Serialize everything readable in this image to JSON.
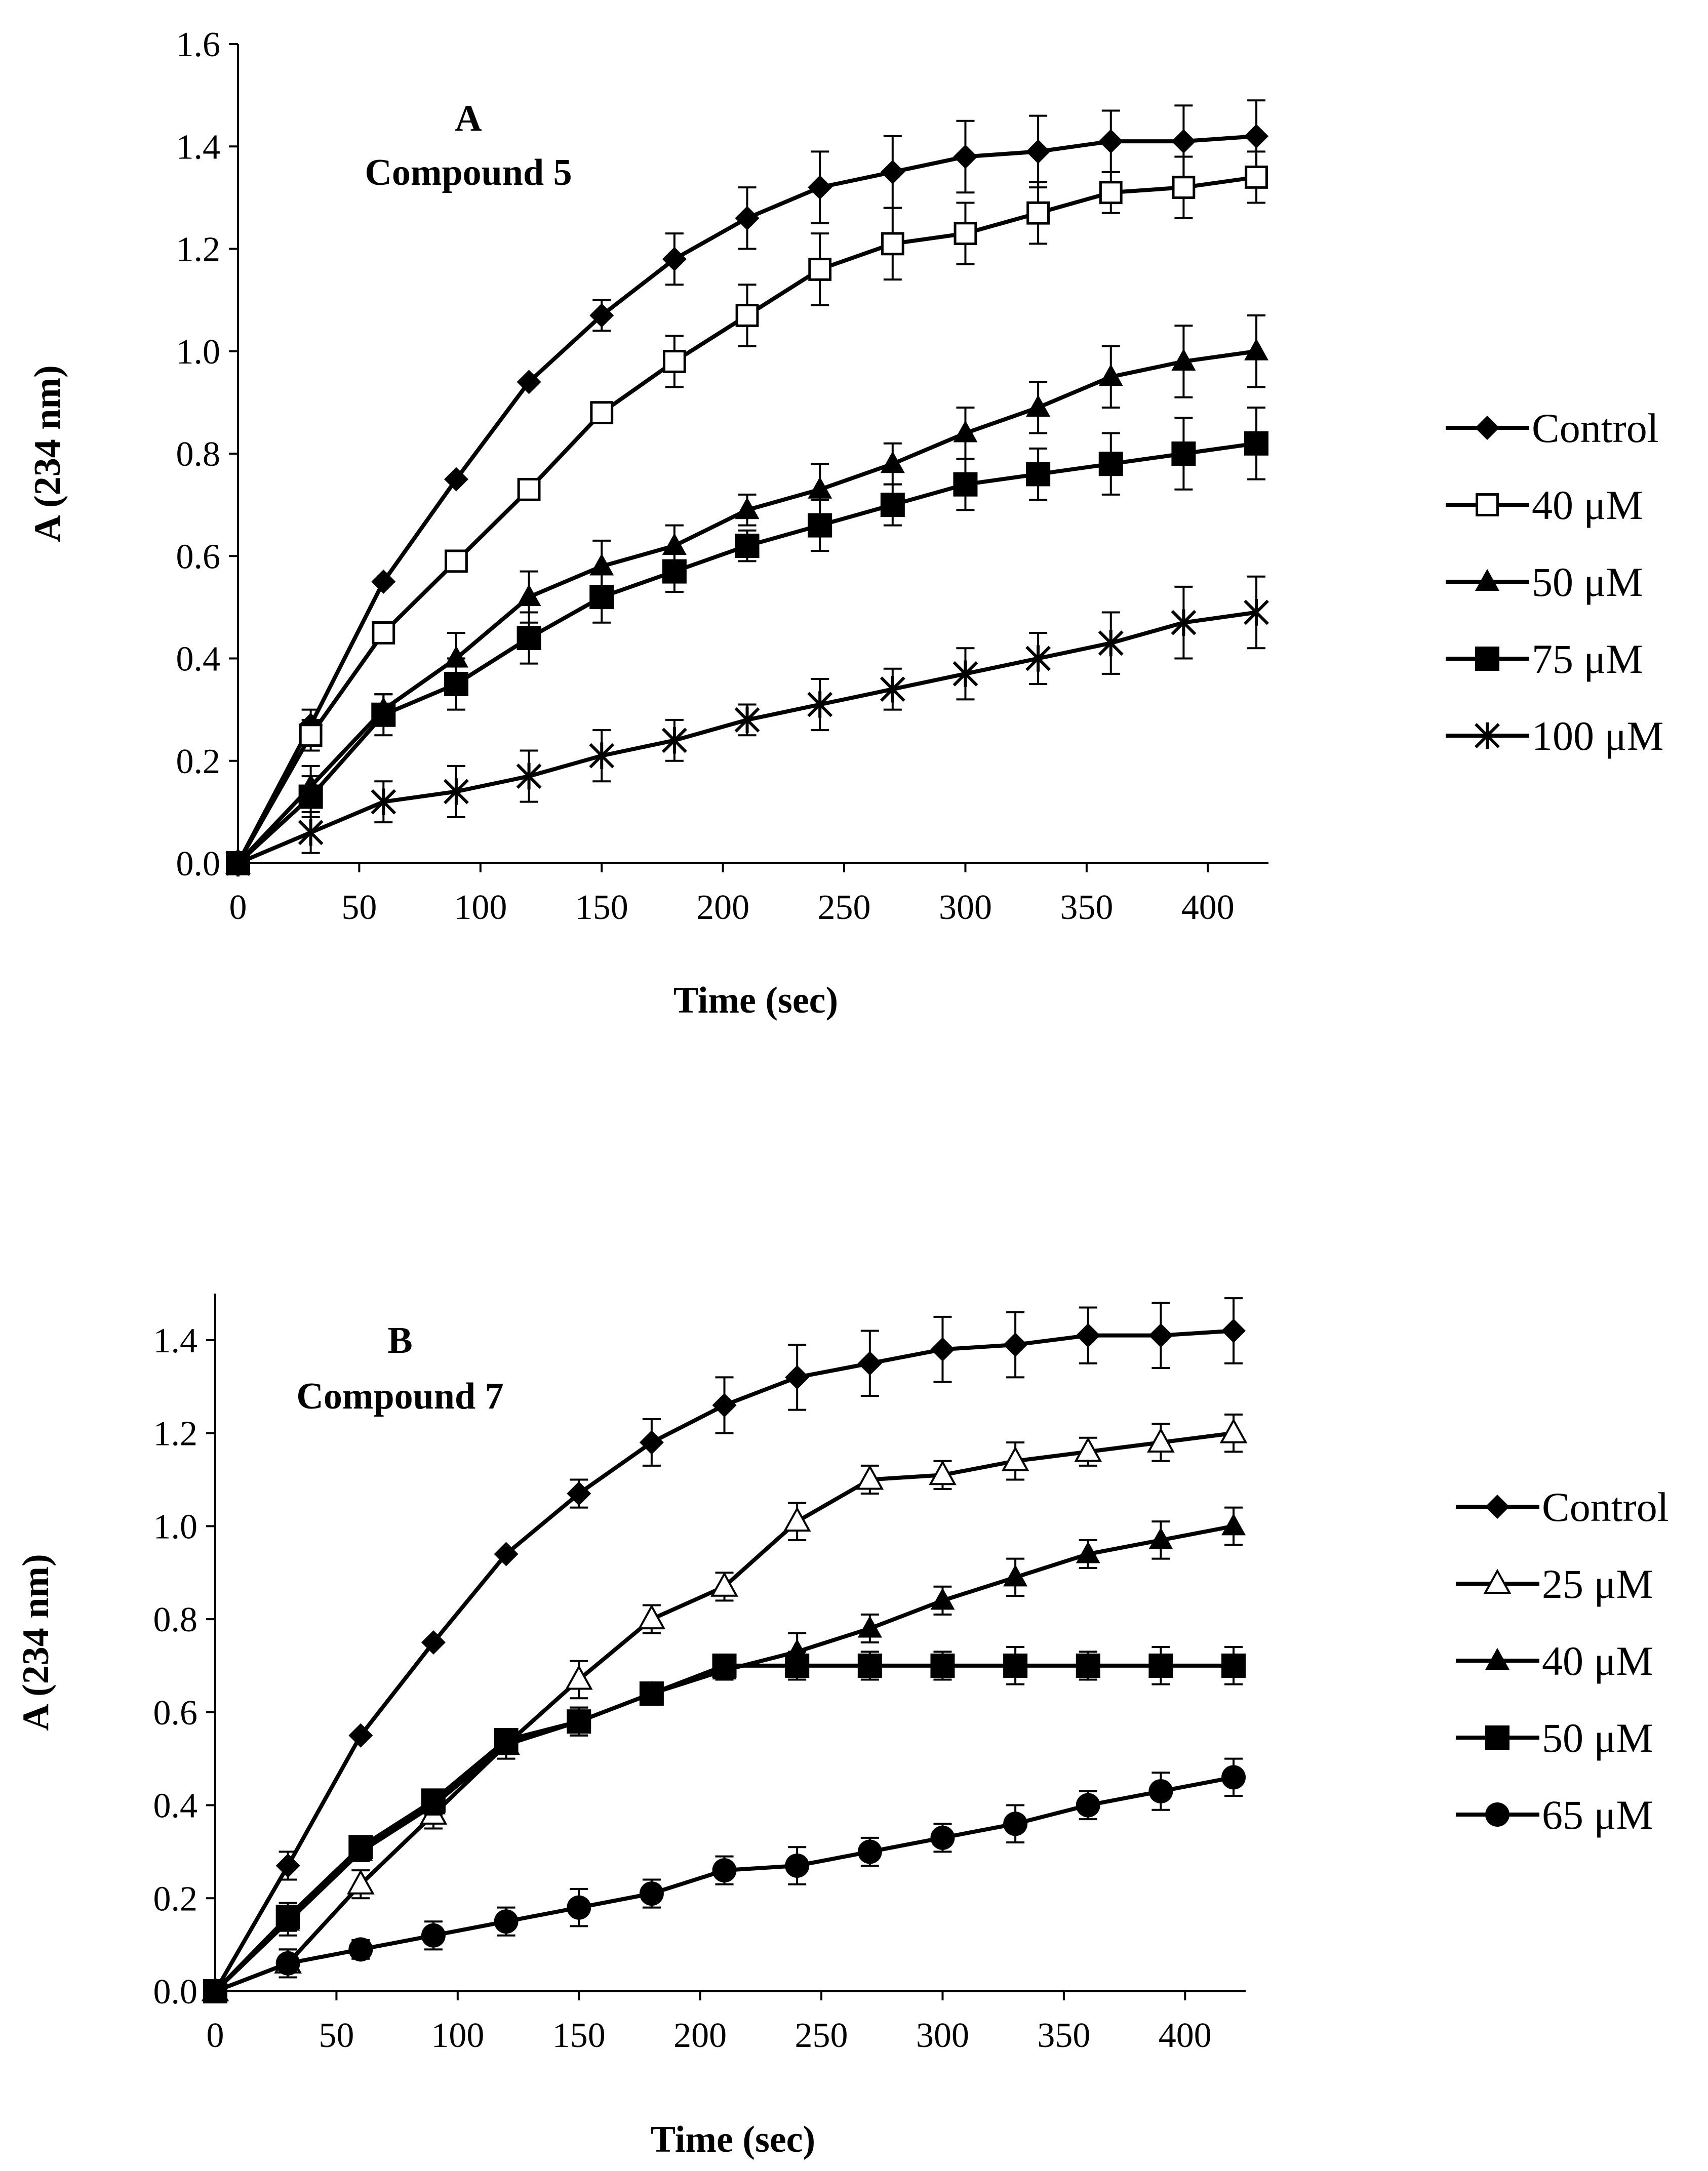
{
  "colors": {
    "foreground": "#000000",
    "background": "#ffffff"
  },
  "chart_data": [
    {
      "type": "line",
      "panel": "A",
      "title": "Compound 5",
      "xlabel": "Time (sec)",
      "ylabel": "A (234 nm)",
      "xlim": [
        0,
        425
      ],
      "ylim": [
        0,
        1.6
      ],
      "xticks": [
        0,
        50,
        100,
        150,
        200,
        250,
        300,
        350,
        400
      ],
      "yticks": [
        0,
        0.2,
        0.4,
        0.6,
        0.8,
        1.0,
        1.2,
        1.4,
        1.6
      ],
      "xtick_labels": [
        "0",
        "50",
        "100",
        "150",
        "200",
        "250",
        "300",
        "350",
        "400"
      ],
      "ytick_labels": [
        "0.0",
        "0.2",
        "0.4",
        "0.6",
        "0.8",
        "1.0",
        "1.2",
        "1.4",
        "1.6"
      ],
      "legend_position": "right",
      "x": [
        0,
        30,
        60,
        90,
        120,
        150,
        180,
        210,
        240,
        270,
        300,
        330,
        360,
        390,
        420
      ],
      "series": [
        {
          "name": "Control",
          "marker": "diamond-filled",
          "values": [
            0,
            0.27,
            0.55,
            0.75,
            0.94,
            1.07,
            1.18,
            1.26,
            1.32,
            1.35,
            1.38,
            1.39,
            1.41,
            1.41,
            1.42
          ],
          "errors": [
            0,
            0.03,
            0,
            0,
            0,
            0.03,
            0.05,
            0.06,
            0.07,
            0.07,
            0.07,
            0.07,
            0.06,
            0.07,
            0.07
          ]
        },
        {
          "name": "40 μM",
          "marker": "square-open",
          "values": [
            0,
            0.25,
            0.45,
            0.59,
            0.73,
            0.88,
            0.98,
            1.07,
            1.16,
            1.21,
            1.23,
            1.27,
            1.31,
            1.32,
            1.34
          ],
          "errors": [
            0,
            0.03,
            0,
            0,
            0,
            0.02,
            0.05,
            0.06,
            0.07,
            0.07,
            0.06,
            0.06,
            0.04,
            0.06,
            0.05
          ]
        },
        {
          "name": "50 μM",
          "marker": "triangle-filled",
          "values": [
            0,
            0.15,
            0.3,
            0.4,
            0.52,
            0.58,
            0.62,
            0.69,
            0.73,
            0.78,
            0.84,
            0.89,
            0.95,
            0.98,
            1.0
          ],
          "errors": [
            0,
            0.04,
            0.03,
            0.05,
            0.05,
            0.05,
            0.04,
            0.03,
            0.05,
            0.04,
            0.05,
            0.05,
            0.06,
            0.07,
            0.07
          ]
        },
        {
          "name": "75 μM",
          "marker": "square-filled",
          "values": [
            0,
            0.13,
            0.29,
            0.35,
            0.44,
            0.52,
            0.57,
            0.62,
            0.66,
            0.7,
            0.74,
            0.76,
            0.78,
            0.8,
            0.82
          ],
          "errors": [
            0,
            0.04,
            0.04,
            0.05,
            0.05,
            0.05,
            0.04,
            0.03,
            0.05,
            0.04,
            0.05,
            0.05,
            0.06,
            0.07,
            0.07
          ]
        },
        {
          "name": "100 μM",
          "marker": "asterisk",
          "values": [
            0,
            0.06,
            0.12,
            0.14,
            0.17,
            0.21,
            0.24,
            0.28,
            0.31,
            0.34,
            0.37,
            0.4,
            0.43,
            0.47,
            0.49
          ],
          "errors": [
            0,
            0.04,
            0.04,
            0.05,
            0.05,
            0.05,
            0.04,
            0.03,
            0.05,
            0.04,
            0.05,
            0.05,
            0.06,
            0.07,
            0.07
          ]
        }
      ]
    },
    {
      "type": "line",
      "panel": "B",
      "title": "Compound 7",
      "xlabel": "Time (sec)",
      "ylabel": "A (234 nm)",
      "xlim": [
        0,
        425
      ],
      "ylim": [
        0,
        1.5
      ],
      "xticks": [
        0,
        50,
        100,
        150,
        200,
        250,
        300,
        350,
        400
      ],
      "yticks": [
        0,
        0.2,
        0.4,
        0.6,
        0.8,
        1.0,
        1.2,
        1.4
      ],
      "xtick_labels": [
        "0",
        "50",
        "100",
        "150",
        "200",
        "250",
        "300",
        "350",
        "400"
      ],
      "ytick_labels": [
        "0.0",
        "0.2",
        "0.4",
        "0.6",
        "0.8",
        "1.0",
        "1.2",
        "1.4"
      ],
      "legend_position": "right",
      "x": [
        0,
        30,
        60,
        90,
        120,
        150,
        180,
        210,
        240,
        270,
        300,
        330,
        360,
        390,
        420
      ],
      "series": [
        {
          "name": "Control",
          "marker": "diamond-filled",
          "values": [
            0,
            0.27,
            0.55,
            0.75,
            0.94,
            1.07,
            1.18,
            1.26,
            1.32,
            1.35,
            1.38,
            1.39,
            1.41,
            1.41,
            1.42
          ],
          "errors": [
            0,
            0.03,
            0,
            0,
            0,
            0.03,
            0.05,
            0.06,
            0.07,
            0.07,
            0.07,
            0.07,
            0.06,
            0.07,
            0.07
          ]
        },
        {
          "name": "25 μM",
          "marker": "triangle-open",
          "values": [
            0,
            0.06,
            0.23,
            0.38,
            0.53,
            0.67,
            0.8,
            0.87,
            1.01,
            1.1,
            1.11,
            1.14,
            1.16,
            1.18,
            1.2
          ],
          "errors": [
            0,
            0.03,
            0.03,
            0.03,
            0.03,
            0.04,
            0.03,
            0.03,
            0.04,
            0.03,
            0.03,
            0.04,
            0.03,
            0.04,
            0.04
          ]
        },
        {
          "name": "40 μM",
          "marker": "triangle-filled",
          "values": [
            0,
            0.15,
            0.3,
            0.4,
            0.53,
            0.58,
            0.64,
            0.69,
            0.73,
            0.78,
            0.84,
            0.89,
            0.94,
            0.97,
            1.0
          ],
          "errors": [
            0,
            0.03,
            0.02,
            0.02,
            0.02,
            0.03,
            0.02,
            0.02,
            0.04,
            0.03,
            0.03,
            0.04,
            0.03,
            0.04,
            0.04
          ]
        },
        {
          "name": "50 μM",
          "marker": "square-filled",
          "values": [
            0,
            0.16,
            0.31,
            0.41,
            0.54,
            0.58,
            0.64,
            0.7,
            0.7,
            0.7,
            0.7,
            0.7,
            0.7,
            0.7,
            0.7
          ],
          "errors": [
            0,
            0.03,
            0.02,
            0.02,
            0.02,
            0.03,
            0.02,
            0.02,
            0.03,
            0.03,
            0.03,
            0.04,
            0.03,
            0.04,
            0.04
          ]
        },
        {
          "name": "65 μM",
          "marker": "circle-filled",
          "values": [
            0,
            0.06,
            0.09,
            0.12,
            0.15,
            0.18,
            0.21,
            0.26,
            0.27,
            0.3,
            0.33,
            0.36,
            0.4,
            0.43,
            0.46
          ],
          "errors": [
            0,
            0.03,
            0.02,
            0.03,
            0.03,
            0.04,
            0.03,
            0.03,
            0.04,
            0.03,
            0.03,
            0.04,
            0.03,
            0.04,
            0.04
          ]
        }
      ]
    }
  ]
}
